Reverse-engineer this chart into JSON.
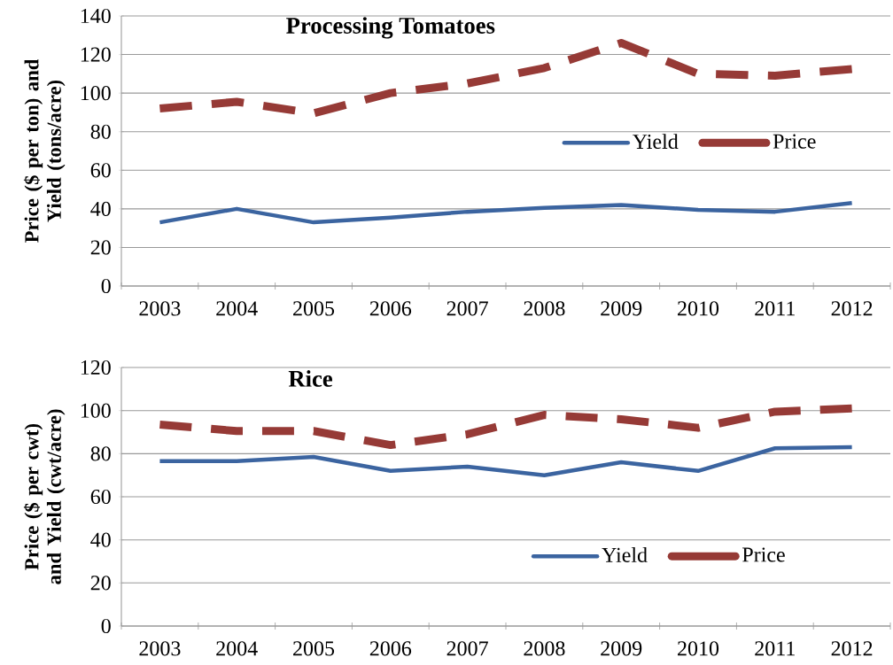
{
  "chart_data": [
    {
      "type": "line",
      "title": "Processing Tomatoes",
      "ylabel": "Price ($ per ton) and Yield (tons/acre)",
      "categories": [
        "2003",
        "2004",
        "2005",
        "2006",
        "2007",
        "2008",
        "2009",
        "2010",
        "2011",
        "2012"
      ],
      "series": [
        {
          "name": "Yield",
          "color": "#3b64a0",
          "line_style": "solid",
          "values": [
            33,
            40,
            33,
            35.5,
            38.5,
            40.5,
            42,
            39.5,
            38.5,
            43
          ]
        },
        {
          "name": "Price",
          "color": "#963a36",
          "line_style": "dashed",
          "values": [
            92,
            95.5,
            89.5,
            100,
            105,
            113,
            126,
            110,
            109,
            112.5
          ]
        }
      ],
      "ylim": [
        0,
        140
      ],
      "yticks": [
        0,
        20,
        40,
        60,
        80,
        100,
        120,
        140
      ],
      "grid": "y",
      "legend": "right"
    },
    {
      "type": "line",
      "title": "Rice",
      "ylabel": "Price ($ per cwt) and Yield (cwt/acre)",
      "categories": [
        "2003",
        "2004",
        "2005",
        "2006",
        "2007",
        "2008",
        "2009",
        "2010",
        "2011",
        "2012"
      ],
      "series": [
        {
          "name": "Yield",
          "color": "#3b64a0",
          "line_style": "solid",
          "values": [
            76.5,
            76.5,
            78.5,
            72,
            74,
            70,
            76,
            72,
            82.5,
            83
          ]
        },
        {
          "name": "Price",
          "color": "#963a36",
          "line_style": "dashed",
          "values": [
            93.5,
            90.5,
            90.5,
            84,
            89,
            98,
            96,
            92,
            99.5,
            101
          ]
        }
      ],
      "ylim": [
        0,
        120
      ],
      "yticks": [
        0,
        20,
        40,
        60,
        80,
        100,
        120
      ],
      "grid": "y",
      "legend": "bottom right"
    }
  ]
}
